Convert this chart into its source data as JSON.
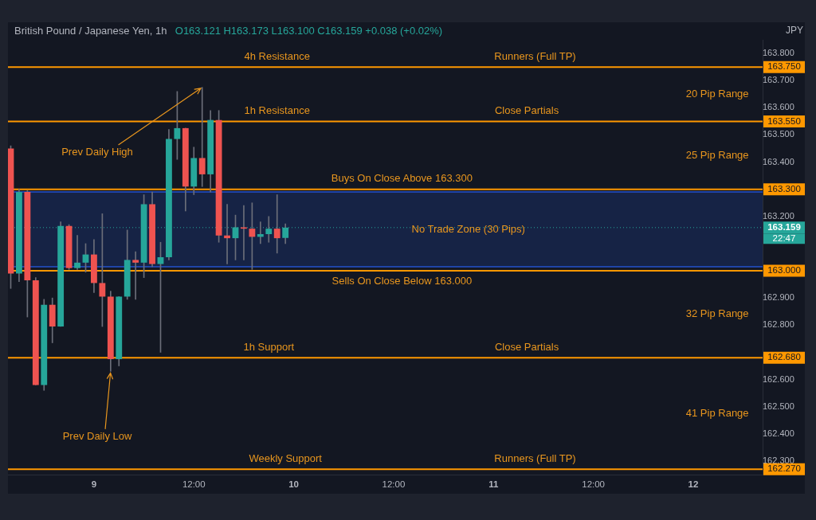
{
  "chart_data": {
    "type": "candlestick",
    "title": "British Pound / Japanese Yen, 1h",
    "subtitle": "O163.121 H163.173 L163.100 C163.159 +0.038 (+0.02%)",
    "ylabel": "JPY",
    "x": [
      "--08-08T14:00",
      "--08-08T15:00",
      "--08-08T16:00",
      "--08-08T17:00",
      "--08-08T18:00",
      "--08-08T19:00",
      "--08-08T20:00",
      "--08-08T21:00",
      "--08-08T22:00",
      "--08-08T23:00",
      "--08-09T00:00",
      "--08-09T01:00",
      "--08-09T02:00",
      "--08-09T03:00",
      "--08-09T04:00",
      "--08-09T05:00",
      "--08-09T06:00",
      "--08-09T07:00",
      "--08-09T08:00",
      "--08-09T09:00",
      "--08-09T10:00",
      "--08-09T11:00",
      "--08-09T12:00",
      "--08-09T13:00",
      "--08-09T14:00",
      "--08-09T15:00",
      "--08-09T16:00",
      "--08-09T17:00",
      "--08-09T18:00",
      "--08-09T19:00",
      "--08-09T20:00",
      "--08-09T21:00",
      "--08-09T22:00",
      "--08-09T23:00"
    ],
    "ohlc": [
      [
        163.45,
        163.46,
        162.935,
        162.99
      ],
      [
        162.99,
        163.3,
        162.96,
        163.29
      ],
      [
        163.29,
        163.295,
        162.83,
        162.965
      ],
      [
        162.965,
        162.975,
        162.58,
        162.58
      ],
      [
        162.58,
        162.895,
        162.56,
        162.875
      ],
      [
        162.875,
        162.9,
        162.735,
        162.795
      ],
      [
        162.795,
        163.18,
        162.795,
        163.165
      ],
      [
        163.165,
        163.17,
        163.005,
        163.01
      ],
      [
        163.01,
        163.13,
        163.005,
        163.03
      ],
      [
        163.03,
        163.1,
        162.995,
        163.06
      ],
      [
        163.06,
        163.115,
        162.92,
        162.955
      ],
      [
        162.955,
        163.21,
        162.795,
        162.905
      ],
      [
        162.905,
        162.925,
        162.63,
        162.675
      ],
      [
        162.675,
        162.905,
        162.65,
        162.905
      ],
      [
        162.905,
        163.15,
        162.895,
        163.04
      ],
      [
        163.04,
        163.07,
        162.895,
        163.03
      ],
      [
        163.03,
        163.28,
        162.975,
        163.245
      ],
      [
        163.245,
        163.29,
        163.015,
        163.025
      ],
      [
        163.025,
        163.105,
        162.7,
        163.05
      ],
      [
        163.05,
        163.52,
        163.04,
        163.485
      ],
      [
        163.485,
        163.66,
        163.41,
        163.525
      ],
      [
        163.525,
        163.525,
        163.22,
        163.31
      ],
      [
        163.31,
        163.455,
        163.28,
        163.415
      ],
      [
        163.415,
        163.675,
        163.31,
        163.355
      ],
      [
        163.355,
        163.59,
        163.29,
        163.555
      ],
      [
        163.555,
        163.59,
        163.105,
        163.13
      ],
      [
        163.13,
        163.245,
        163.025,
        163.12
      ],
      [
        163.12,
        163.205,
        163.04,
        163.16
      ],
      [
        163.16,
        163.24,
        163.04,
        163.155
      ],
      [
        163.155,
        163.25,
        163.005,
        163.125
      ],
      [
        163.125,
        163.18,
        163.1,
        163.135
      ],
      [
        163.135,
        163.2,
        163.105,
        163.155
      ],
      [
        163.155,
        163.28,
        163.065,
        163.12
      ],
      [
        163.121,
        163.173,
        163.1,
        163.159
      ]
    ],
    "colors": [
      "#ef5350",
      "#26a69a",
      "#ef5350",
      "#ef5350",
      "#26a69a",
      "#ef5350",
      "#26a69a",
      "#ef5350",
      "#26a69a",
      "#26a69a",
      "#ef5350",
      "#ef5350",
      "#ef5350",
      "#26a69a",
      "#26a69a",
      "#ef5350",
      "#26a69a",
      "#ef5350",
      "#26a69a",
      "#26a69a",
      "#26a69a",
      "#ef5350",
      "#26a69a",
      "#ef5350",
      "#26a69a",
      "#ef5350",
      "#ef5350",
      "#26a69a",
      "#ef5350",
      "#ef5350",
      "#26a69a",
      "#26a69a",
      "#ef5350",
      "#26a69a"
    ],
    "xlim": [
      "--08-08T13:40",
      "--08-12T08:20"
    ],
    "xticks": [
      {
        "value": "--08-09",
        "label": "9"
      },
      {
        "value": "--08-09T12:00",
        "label": "12:00"
      },
      {
        "value": "--08-10",
        "label": "10"
      },
      {
        "value": "--08-10T12:00",
        "label": "12:00"
      },
      {
        "value": "--08-11",
        "label": "11"
      },
      {
        "value": "--08-11T12:00",
        "label": "12:00"
      },
      {
        "value": "--08-12",
        "label": "12"
      }
    ],
    "ylim": [
      162.25,
      163.85
    ],
    "yticks": [
      {
        "value": 163.8,
        "label": "163.800"
      },
      {
        "value": 163.7,
        "label": "163.700"
      },
      {
        "value": 163.6,
        "label": "163.600"
      },
      {
        "value": 163.5,
        "label": "163.500"
      },
      {
        "value": 163.4,
        "label": "163.400"
      },
      {
        "value": 163.2,
        "label": "163.200"
      },
      {
        "value": 162.9,
        "label": "162.900"
      },
      {
        "value": 162.8,
        "label": "162.800"
      },
      {
        "value": 162.6,
        "label": "162.600"
      },
      {
        "value": 162.5,
        "label": "162.500"
      },
      {
        "value": 162.4,
        "label": "162.400"
      },
      {
        "value": 162.3,
        "label": "162.300"
      }
    ],
    "ref_lines": [
      {
        "axis": "y",
        "value": 163.75,
        "label": "163.750",
        "color": "#ff9800"
      },
      {
        "axis": "y",
        "value": 163.55,
        "label": "163.550",
        "color": "#ff9800"
      },
      {
        "axis": "y",
        "value": 163.3,
        "label": "163.300",
        "color": "#ff9800"
      },
      {
        "axis": "y",
        "value": 163.159,
        "label": "163.159",
        "color": "#26a69a",
        "line_style": "dotted"
      },
      {
        "axis": "y",
        "value": 163.0,
        "label": "163.000",
        "color": "#ff9800"
      },
      {
        "axis": "y",
        "value": 162.68,
        "label": "162.680",
        "color": "#ff9800"
      },
      {
        "axis": "y",
        "value": 162.27,
        "label": "162.270",
        "color": "#ff9800"
      }
    ],
    "bands": [
      {
        "axis": "y",
        "from": 163.015,
        "to": 163.29,
        "label": "No Trade Zone (30 Pips)",
        "color": "#2962ff"
      }
    ],
    "annotations": [
      {
        "text": "4h Resistance",
        "x": "--08-09T22:00",
        "y": 163.75
      },
      {
        "text": "Runners (Full TP)",
        "x": "--08-11T05:00",
        "y": 163.75
      },
      "20 Pip Range",
      {
        "text": "Prev Daily High",
        "x": "--08-09T13:00",
        "y": 163.675
      },
      {
        "text": "1h Resistance",
        "x": "--08-09T22:00",
        "y": 163.55
      },
      {
        "text": "Close Partials",
        "x": "--08-11T04:00",
        "y": 163.55
      },
      "25 Pip Range",
      {
        "text": "Buys On Close Above 163.300",
        "x": "--08-10T13:00",
        "y": 163.3
      },
      {
        "text": "Sells On Close Below 163.000",
        "x": "--08-10T13:00",
        "y": 163.0
      },
      "32 Pip Range",
      {
        "text": "1h Support",
        "x": "--08-09T21:00",
        "y": 162.68
      },
      {
        "text": "Close Partials",
        "x": "--08-11T04:00",
        "y": 162.68
      },
      "41 Pip Range",
      {
        "text": "Prev Daily Low",
        "x": "--08-09T02:00",
        "y": 162.63
      },
      {
        "text": "Weekly Support",
        "x": "--08-09T23:00",
        "y": 162.27
      },
      {
        "text": "Runners (Full TP)",
        "x": "--08-11T05:00",
        "y": 162.27
      },
      "22:47"
    ]
  }
}
